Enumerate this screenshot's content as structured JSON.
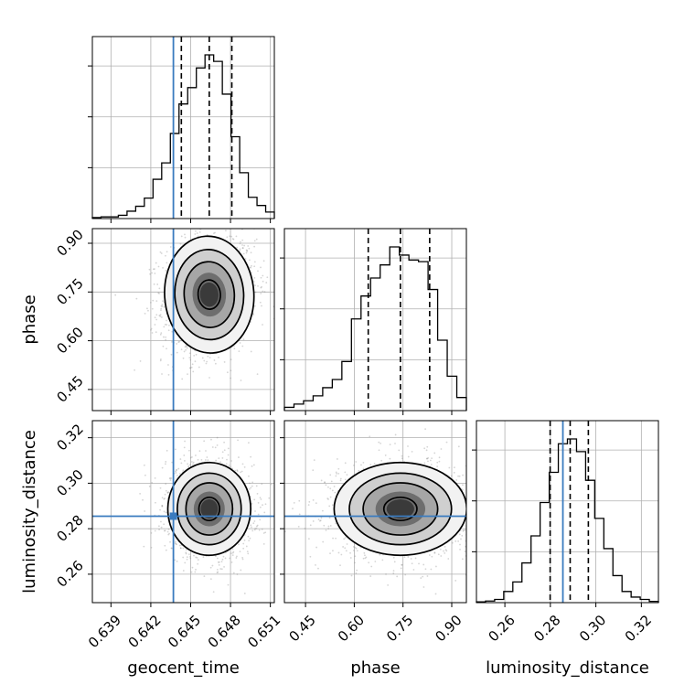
{
  "chart_data": {
    "type": "corner",
    "grid": true,
    "truth_color": "#3a7bbf",
    "parameters": [
      {
        "name": "geocent_time",
        "range": [
          0.6376,
          0.6513
        ],
        "ticks": [
          0.639,
          0.642,
          0.645,
          0.648,
          0.651
        ],
        "tick_labels": [
          "0.639",
          "0.642",
          "0.645",
          "0.648",
          "0.651"
        ],
        "truth": 0.6437,
        "quantiles": [
          0.6443,
          0.6464,
          0.6481
        ],
        "hist": [
          0.006,
          0.01,
          0.01,
          0.02,
          0.045,
          0.075,
          0.125,
          0.24,
          0.34,
          0.52,
          0.7,
          0.8,
          0.92,
          1.0,
          0.96,
          0.76,
          0.5,
          0.28,
          0.13,
          0.08,
          0.04
        ]
      },
      {
        "name": "phase",
        "range": [
          0.385,
          0.945
        ],
        "ticks": [
          0.45,
          0.6,
          0.75,
          0.9
        ],
        "tick_labels": [
          "0.45",
          "0.60",
          "0.75",
          "0.90"
        ],
        "truth": null,
        "quantiles": [
          0.643,
          0.742,
          0.832
        ],
        "hist": [
          0.02,
          0.04,
          0.06,
          0.09,
          0.14,
          0.19,
          0.3,
          0.56,
          0.7,
          0.81,
          0.89,
          1.0,
          0.95,
          0.92,
          0.91,
          0.74,
          0.43,
          0.21,
          0.08
        ]
      },
      {
        "name": "luminosity_distance",
        "range": [
          0.2475,
          0.3275
        ],
        "ticks": [
          0.26,
          0.28,
          0.3,
          0.32
        ],
        "tick_labels": [
          "0.26",
          "0.28",
          "0.30",
          "0.32"
        ],
        "truth": 0.2855,
        "quantiles": [
          0.2799,
          0.2887,
          0.2967
        ],
        "hist": [
          0.005,
          0.01,
          0.02,
          0.07,
          0.13,
          0.25,
          0.42,
          0.63,
          0.82,
          1.0,
          1.03,
          0.95,
          0.77,
          0.53,
          0.34,
          0.17,
          0.07,
          0.035,
          0.02,
          0.008
        ]
      }
    ],
    "contours": [
      {
        "x_param": "geocent_time",
        "y_param": "phase",
        "center": [
          0.6464,
          0.742
        ],
        "sd": [
          0.0014,
          0.075
        ],
        "corr": 0.12,
        "truth_x": 0.6437,
        "truth_y": null
      },
      {
        "x_param": "geocent_time",
        "y_param": "luminosity_distance",
        "center": [
          0.6464,
          0.2887
        ],
        "sd": [
          0.0013,
          0.0085
        ],
        "corr": -0.05,
        "truth_x": 0.6437,
        "truth_y": 0.2855
      },
      {
        "x_param": "phase",
        "y_param": "luminosity_distance",
        "center": [
          0.742,
          0.2887
        ],
        "sd": [
          0.085,
          0.0085
        ],
        "corr": 0.0,
        "truth_x": null,
        "truth_y": 0.2855
      }
    ]
  }
}
